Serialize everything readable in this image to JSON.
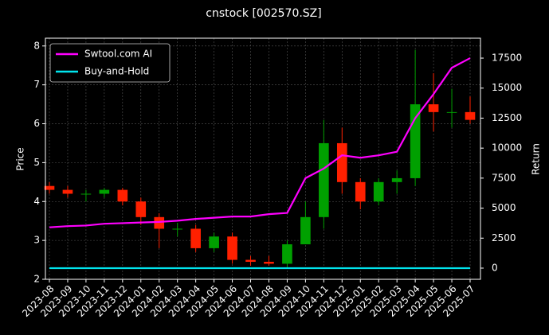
{
  "chart_data": {
    "type": "candlestick",
    "title": "cnstock [002570.SZ]",
    "y_label": "Price",
    "y2_label": "Return",
    "categories": [
      "2023-08",
      "2023-09",
      "2023-10",
      "2023-11",
      "2023-12",
      "2024-01",
      "2024-02",
      "2024-03",
      "2024-04",
      "2024-05",
      "2024-06",
      "2024-07",
      "2024-08",
      "2024-09",
      "2024-10",
      "2024-11",
      "2024-12",
      "2025-01",
      "2025-02",
      "2025-03",
      "2025-04",
      "2025-05",
      "2025-06",
      "2025-07"
    ],
    "open": [
      4.4,
      4.3,
      4.2,
      4.2,
      4.3,
      4.0,
      3.6,
      3.3,
      3.3,
      2.8,
      3.1,
      2.5,
      2.45,
      2.4,
      2.9,
      3.6,
      5.5,
      4.5,
      4.0,
      4.5,
      4.6,
      6.5,
      6.3,
      6.3
    ],
    "high": [
      4.5,
      4.4,
      4.3,
      4.35,
      4.35,
      4.1,
      3.7,
      3.45,
      3.4,
      3.2,
      3.2,
      2.6,
      2.6,
      3.0,
      4.0,
      6.1,
      5.9,
      4.6,
      4.6,
      4.8,
      7.9,
      7.3,
      6.9,
      6.7
    ],
    "low": [
      4.2,
      4.1,
      4.0,
      4.1,
      3.9,
      3.4,
      2.8,
      3.1,
      2.7,
      2.7,
      2.4,
      2.35,
      2.35,
      2.3,
      2.9,
      3.3,
      4.2,
      3.8,
      3.9,
      4.2,
      4.4,
      5.8,
      5.9,
      6.0
    ],
    "close": [
      4.3,
      4.2,
      4.2,
      4.3,
      4.0,
      3.6,
      3.3,
      3.3,
      2.8,
      3.1,
      2.5,
      2.45,
      2.4,
      2.9,
      3.6,
      5.5,
      4.5,
      4.0,
      4.5,
      4.6,
      6.5,
      6.3,
      6.3,
      6.1
    ],
    "up_color": "#00a000",
    "down_color": "#ff2000",
    "series": [
      {
        "name": "Swtool.com AI",
        "color": "#ff00ff",
        "axis": "y2",
        "values": [
          3400,
          3500,
          3550,
          3700,
          3750,
          3800,
          3850,
          3950,
          4100,
          4200,
          4300,
          4300,
          4500,
          4600,
          7500,
          8300,
          9400,
          9200,
          9400,
          9700,
          12500,
          14500,
          16700,
          17500
        ]
      },
      {
        "name": "Buy-and-Hold",
        "color": "#00e5ee",
        "axis": "y2",
        "values": [
          0,
          0,
          0,
          0,
          0,
          0,
          0,
          0,
          0,
          0,
          0,
          0,
          0,
          0,
          0,
          0,
          0,
          0,
          0,
          0,
          0,
          0,
          0,
          0
        ]
      }
    ],
    "ylim": [
      2,
      8.2
    ],
    "yticks": [
      2,
      3,
      4,
      5,
      6,
      7,
      8
    ],
    "y2lim": [
      -930,
      19160
    ],
    "y2ticks": [
      0,
      2500,
      5000,
      7500,
      10000,
      12500,
      15000,
      17500
    ],
    "grid": true,
    "legend": "upper-left"
  }
}
